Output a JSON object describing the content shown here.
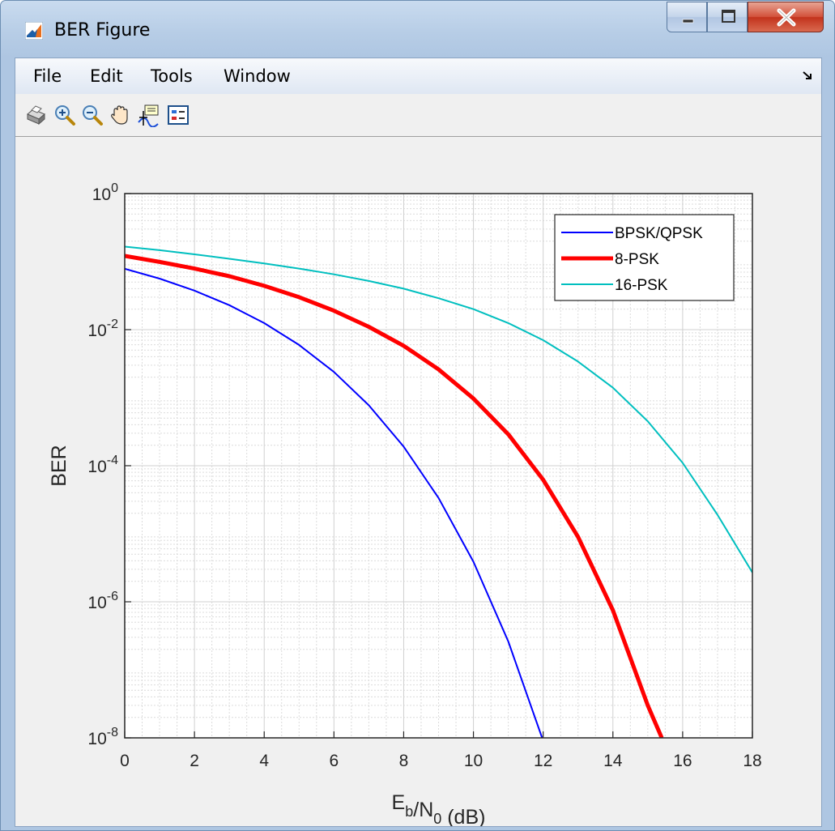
{
  "window": {
    "title": "BER Figure",
    "controls": [
      "minimize",
      "maximize",
      "close"
    ]
  },
  "menu": {
    "items": [
      "File",
      "Edit",
      "Tools",
      "Window"
    ]
  },
  "toolbar": {
    "icons": [
      "print-icon",
      "zoom-in-icon",
      "zoom-out-icon",
      "pan-hand-icon",
      "data-cursor-icon",
      "legend-icon"
    ]
  },
  "colors": {
    "bpsk": "#0000ff",
    "psk8": "#ff0000",
    "psk16": "#00bfbf"
  },
  "chart_data": {
    "type": "line",
    "title": "",
    "xlabel": "E_b/N_0 (dB)",
    "ylabel": "BER",
    "xlim": [
      0,
      18
    ],
    "ylim": [
      1e-08,
      1
    ],
    "yscale": "log",
    "grid": true,
    "minor_grid": true,
    "legend_position": "top-right",
    "x_ticks": [
      0,
      2,
      4,
      6,
      8,
      10,
      12,
      14,
      16,
      18
    ],
    "y_tick_exponents": [
      0,
      -2,
      -4,
      -6,
      -8
    ],
    "series": [
      {
        "name": "BPSK/QPSK",
        "x": [
          0,
          1,
          2,
          3,
          4,
          5,
          6,
          7,
          8,
          9,
          10,
          11,
          12
        ],
        "y": [
          0.0786,
          0.0563,
          0.0375,
          0.0229,
          0.0125,
          0.00595,
          0.00239,
          0.000773,
          0.000191,
          3.36e-05,
          3.87e-06,
          2.61e-07,
          9e-09
        ]
      },
      {
        "name": "8-PSK",
        "x": [
          0,
          1,
          2,
          3,
          4,
          5,
          6,
          7,
          8,
          9,
          10,
          11,
          12,
          13,
          14,
          15,
          15.4
        ],
        "y": [
          0.121,
          0.099,
          0.079,
          0.061,
          0.044,
          0.03,
          0.019,
          0.011,
          0.0058,
          0.0026,
          0.00097,
          0.00029,
          6.2e-05,
          9e-06,
          7.5e-07,
          3e-08,
          1e-08
        ]
      },
      {
        "name": "16-PSK",
        "x": [
          0,
          1,
          2,
          3,
          4,
          5,
          6,
          7,
          8,
          9,
          10,
          11,
          12,
          13,
          14,
          15,
          16,
          17,
          18
        ],
        "y": [
          0.166,
          0.147,
          0.128,
          0.11,
          0.094,
          0.079,
          0.065,
          0.052,
          0.04,
          0.029,
          0.02,
          0.0125,
          0.007,
          0.0034,
          0.0014,
          0.00045,
          0.00011,
          1.9e-05,
          2.7e-06
        ]
      }
    ]
  }
}
